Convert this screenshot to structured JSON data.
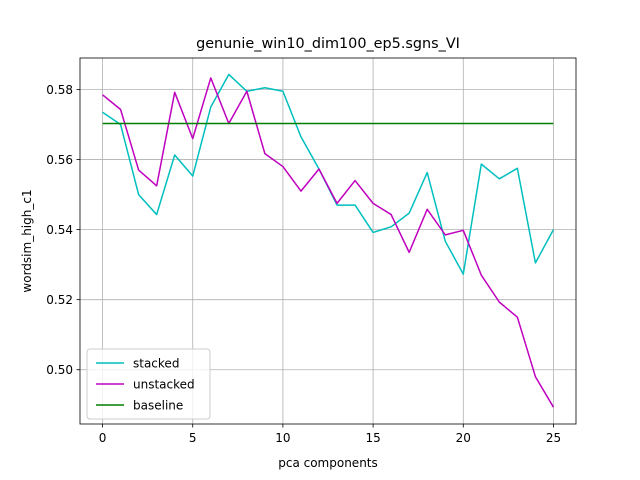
{
  "chart_data": {
    "type": "line",
    "title": "genunie_win10_dim100_ep5.sgns_VI",
    "xlabel": "pca components",
    "ylabel": "wordsim_high_c1",
    "xlim": [
      -1.25,
      26.25
    ],
    "ylim": [
      0.4845,
      0.589
    ],
    "x_ticks": [
      0,
      5,
      10,
      15,
      20,
      25
    ],
    "x_tick_labels": [
      "0",
      "5",
      "10",
      "15",
      "20",
      "25"
    ],
    "y_ticks": [
      0.5,
      0.52,
      0.54,
      0.56,
      0.58
    ],
    "y_tick_labels": [
      "0.50",
      "0.52",
      "0.54",
      "0.56",
      "0.58"
    ],
    "grid": true,
    "legend_position": "lower-left",
    "x": [
      0,
      1,
      2,
      3,
      4,
      5,
      6,
      7,
      8,
      9,
      10,
      11,
      12,
      13,
      14,
      15,
      16,
      17,
      18,
      19,
      20,
      21,
      22,
      23,
      24,
      25
    ],
    "series": [
      {
        "name": "stacked",
        "color": "#00bfbf",
        "values": [
          0.5735,
          0.57,
          0.55,
          0.5443,
          0.5613,
          0.5553,
          0.575,
          0.5843,
          0.5795,
          0.5805,
          0.5795,
          0.5665,
          0.5573,
          0.547,
          0.547,
          0.5392,
          0.5408,
          0.5447,
          0.5563,
          0.5367,
          0.5273,
          0.5587,
          0.5545,
          0.5575,
          0.5305,
          0.54
        ]
      },
      {
        "name": "unstacked",
        "color": "#bf00bf",
        "values": [
          0.5785,
          0.5743,
          0.557,
          0.5525,
          0.5792,
          0.566,
          0.5833,
          0.5703,
          0.5795,
          0.5617,
          0.558,
          0.551,
          0.5573,
          0.5475,
          0.554,
          0.5475,
          0.5443,
          0.5335,
          0.5458,
          0.5385,
          0.5398,
          0.527,
          0.5193,
          0.515,
          0.498,
          0.4893
        ]
      },
      {
        "name": "baseline",
        "color": "#008000",
        "values": [
          0.5703,
          0.5703,
          0.5703,
          0.5703,
          0.5703,
          0.5703,
          0.5703,
          0.5703,
          0.5703,
          0.5703,
          0.5703,
          0.5703,
          0.5703,
          0.5703,
          0.5703,
          0.5703,
          0.5703,
          0.5703,
          0.5703,
          0.5703,
          0.5703,
          0.5703,
          0.5703,
          0.5703,
          0.5703,
          0.5703
        ]
      }
    ]
  }
}
